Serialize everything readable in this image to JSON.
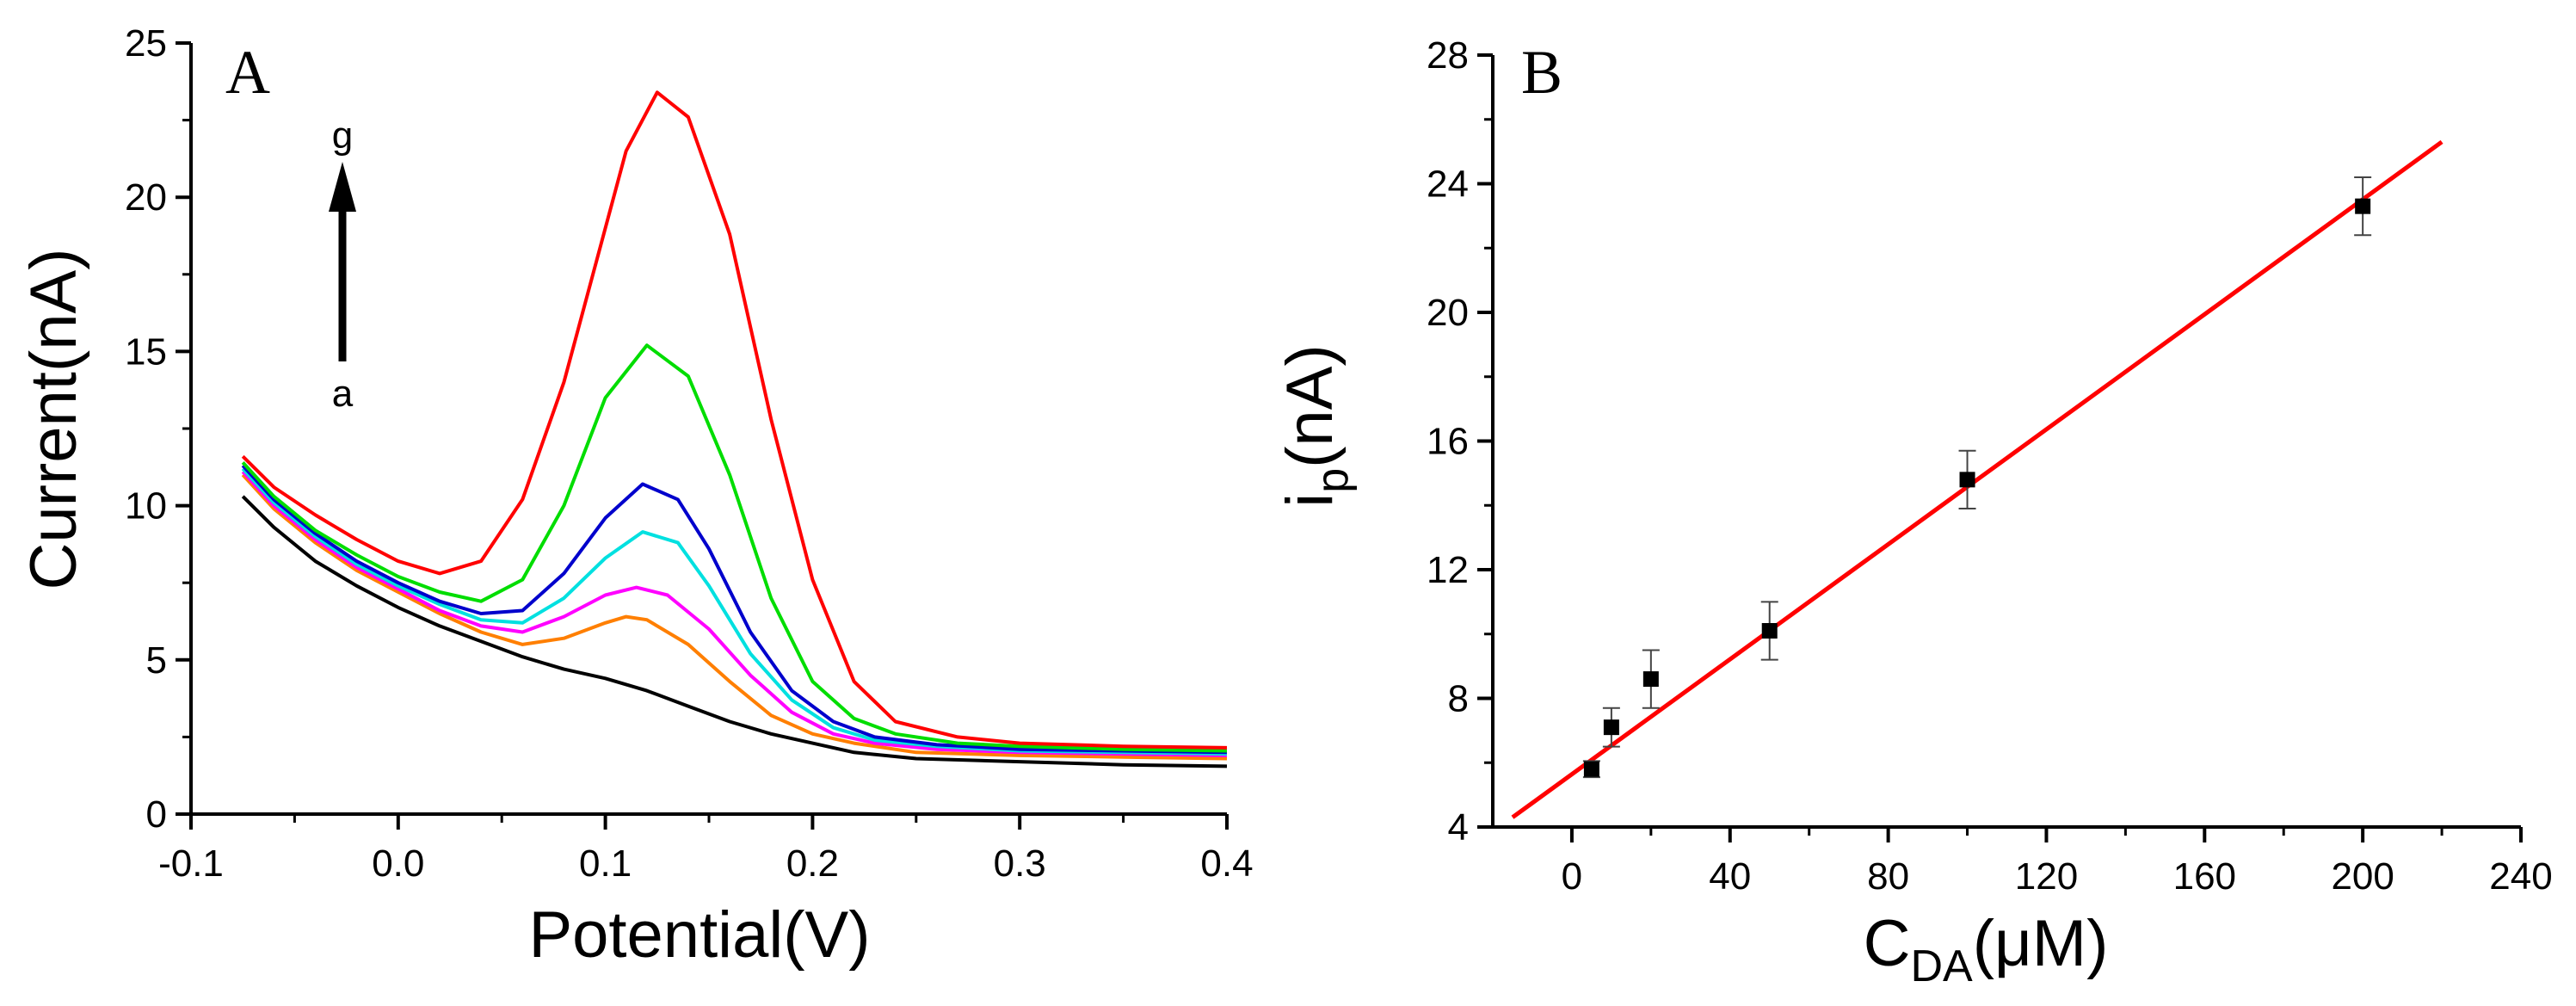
{
  "chart_data": [
    {
      "type": "line",
      "panel_label": "A",
      "xlabel": "Potential(V)",
      "ylabel": "Current(nA)",
      "xlim": [
        -0.1,
        0.4
      ],
      "ylim": [
        0,
        25
      ],
      "xticks": [
        "-0.1",
        "0.0",
        "0.1",
        "0.2",
        "0.3",
        "0.4"
      ],
      "yticks": [
        "0",
        "5",
        "10",
        "15",
        "20",
        "25"
      ],
      "grid": false,
      "annotation": {
        "from_label": "a",
        "to_label": "g"
      },
      "series": [
        {
          "color": "#000000",
          "x": [
            -0.075,
            -0.06,
            -0.04,
            -0.02,
            0.0,
            0.02,
            0.04,
            0.06,
            0.08,
            0.1,
            0.12,
            0.14,
            0.16,
            0.18,
            0.2,
            0.22,
            0.25,
            0.3,
            0.35,
            0.4
          ],
          "y": [
            10.3,
            9.3,
            8.2,
            7.4,
            6.7,
            6.1,
            5.6,
            5.1,
            4.7,
            4.4,
            4.0,
            3.5,
            3.0,
            2.6,
            2.3,
            2.0,
            1.8,
            1.7,
            1.6,
            1.55
          ]
        },
        {
          "color": "#ff7f00",
          "x": [
            -0.075,
            -0.06,
            -0.04,
            -0.02,
            0.0,
            0.02,
            0.04,
            0.06,
            0.08,
            0.1,
            0.11,
            0.12,
            0.14,
            0.16,
            0.18,
            0.2,
            0.22,
            0.25,
            0.3,
            0.35,
            0.4
          ],
          "y": [
            11.0,
            9.9,
            8.8,
            7.9,
            7.2,
            6.5,
            5.9,
            5.5,
            5.7,
            6.2,
            6.4,
            6.3,
            5.5,
            4.3,
            3.2,
            2.6,
            2.3,
            2.0,
            1.9,
            1.85,
            1.8
          ]
        },
        {
          "color": "#ff00ff",
          "x": [
            -0.075,
            -0.06,
            -0.04,
            -0.02,
            0.0,
            0.02,
            0.04,
            0.06,
            0.08,
            0.1,
            0.115,
            0.13,
            0.15,
            0.17,
            0.19,
            0.21,
            0.23,
            0.26,
            0.3,
            0.35,
            0.4
          ],
          "y": [
            11.1,
            10.0,
            8.9,
            8.0,
            7.3,
            6.6,
            6.1,
            5.9,
            6.4,
            7.1,
            7.35,
            7.1,
            6.0,
            4.5,
            3.3,
            2.6,
            2.3,
            2.1,
            2.0,
            1.95,
            1.9
          ]
        },
        {
          "color": "#00e0e0",
          "x": [
            -0.075,
            -0.06,
            -0.04,
            -0.02,
            0.0,
            0.02,
            0.04,
            0.06,
            0.08,
            0.1,
            0.118,
            0.135,
            0.15,
            0.17,
            0.19,
            0.21,
            0.23,
            0.26,
            0.3,
            0.35,
            0.4
          ],
          "y": [
            11.2,
            10.1,
            9.0,
            8.1,
            7.4,
            6.8,
            6.3,
            6.2,
            7.0,
            8.3,
            9.15,
            8.8,
            7.4,
            5.2,
            3.7,
            2.8,
            2.4,
            2.2,
            2.05,
            2.0,
            1.95
          ]
        },
        {
          "color": "#0000cc",
          "x": [
            -0.075,
            -0.06,
            -0.04,
            -0.02,
            0.0,
            0.02,
            0.04,
            0.06,
            0.08,
            0.1,
            0.118,
            0.135,
            0.15,
            0.17,
            0.19,
            0.21,
            0.23,
            0.26,
            0.3,
            0.35,
            0.4
          ],
          "y": [
            11.3,
            10.2,
            9.1,
            8.2,
            7.5,
            6.9,
            6.5,
            6.6,
            7.8,
            9.6,
            10.7,
            10.2,
            8.6,
            5.9,
            4.0,
            3.0,
            2.5,
            2.25,
            2.1,
            2.05,
            2.0
          ]
        },
        {
          "color": "#00dd00",
          "x": [
            -0.075,
            -0.06,
            -0.04,
            -0.02,
            0.0,
            0.02,
            0.04,
            0.06,
            0.08,
            0.1,
            0.12,
            0.14,
            0.16,
            0.18,
            0.2,
            0.22,
            0.24,
            0.27,
            0.3,
            0.35,
            0.4
          ],
          "y": [
            11.4,
            10.3,
            9.2,
            8.4,
            7.7,
            7.2,
            6.9,
            7.6,
            10.0,
            13.5,
            15.2,
            14.2,
            11.0,
            7.0,
            4.3,
            3.1,
            2.6,
            2.3,
            2.2,
            2.1,
            2.05
          ]
        },
        {
          "color": "#ff0000",
          "x": [
            -0.075,
            -0.06,
            -0.04,
            -0.02,
            0.0,
            0.02,
            0.04,
            0.06,
            0.08,
            0.1,
            0.11,
            0.125,
            0.14,
            0.16,
            0.18,
            0.2,
            0.22,
            0.24,
            0.27,
            0.3,
            0.35,
            0.4
          ],
          "y": [
            11.6,
            10.6,
            9.7,
            8.9,
            8.2,
            7.8,
            8.2,
            10.2,
            14.0,
            19.0,
            21.5,
            23.4,
            22.6,
            18.8,
            12.8,
            7.6,
            4.3,
            3.0,
            2.5,
            2.3,
            2.2,
            2.15
          ]
        }
      ]
    },
    {
      "type": "scatter",
      "panel_label": "B",
      "xlabel_main": "C",
      "xlabel_sub": "DA",
      "xlabel_unit": "(μM)",
      "ylabel_main": "i",
      "ylabel_sub": "p",
      "ylabel_unit": "(nA)",
      "xlim": [
        -20,
        240
      ],
      "ylim": [
        4,
        28
      ],
      "xticks": [
        "0",
        "40",
        "80",
        "120",
        "160",
        "200",
        "240"
      ],
      "yticks": [
        "4",
        "8",
        "12",
        "16",
        "20",
        "24",
        "28"
      ],
      "grid": false,
      "points": {
        "color": "#000000",
        "x": [
          5,
          10,
          20,
          50,
          100,
          200
        ],
        "y": [
          5.8,
          7.1,
          8.6,
          10.1,
          14.8,
          23.3
        ],
        "error": [
          0.25,
          0.6,
          0.9,
          0.9,
          0.9,
          0.9
        ]
      },
      "fit_line": {
        "color": "#ff0000",
        "x": [
          -15,
          220
        ],
        "y": [
          4.3,
          25.3
        ]
      }
    }
  ]
}
